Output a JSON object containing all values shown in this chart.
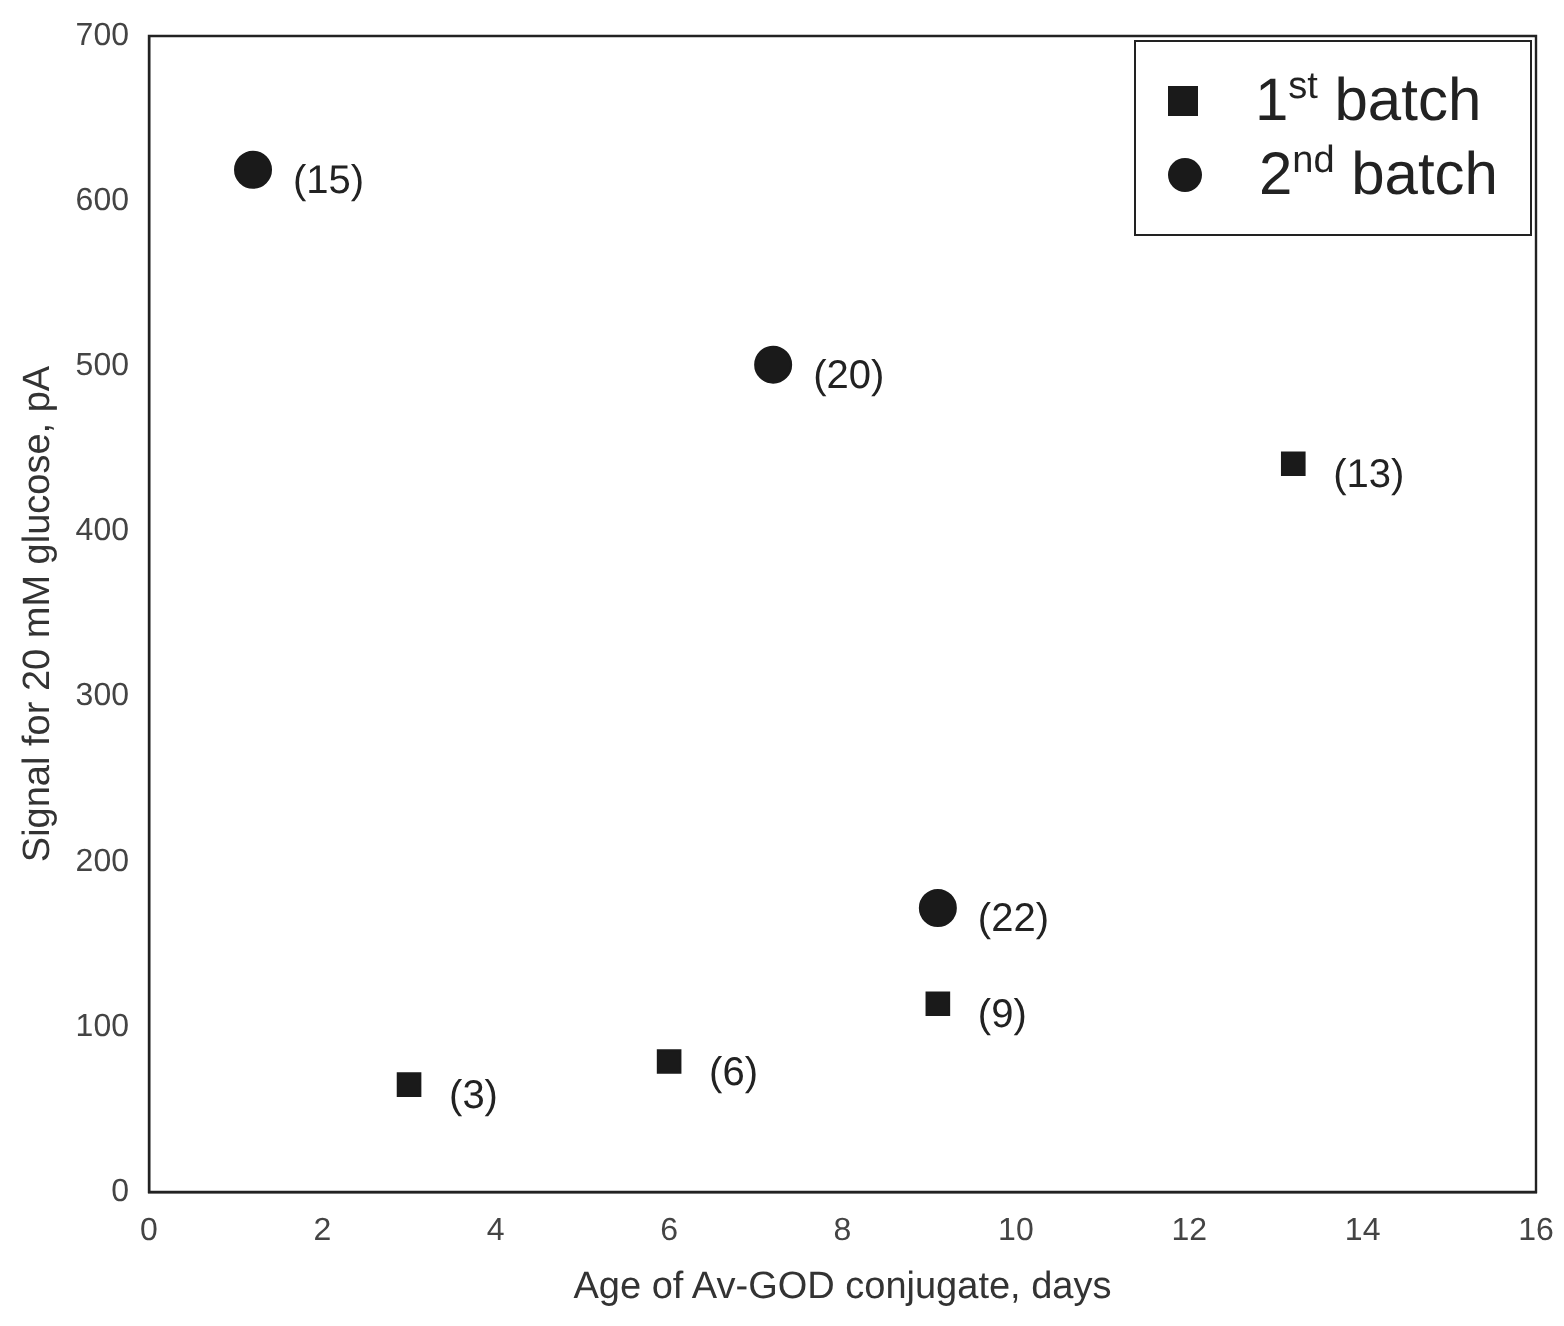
{
  "chart_data": {
    "type": "scatter",
    "xlabel": "Age of Av-GOD conjugate, days",
    "ylabel": "Signal for 20 mM glucose, pA",
    "series": [
      {
        "name": "1$^{st}$ batch",
        "color": "#1a1a1a",
        "marker": "square",
        "x": [
          3,
          6,
          9.1,
          13.2
        ],
        "values": [
          65,
          79,
          114,
          441
        ]
      },
      {
        "name": "2$^{nd}$ batch",
        "color": "#1a1a1a",
        "marker": "circle",
        "x": [
          1.2,
          7.2,
          9.1
        ],
        "values": [
          619,
          501,
          172
        ]
      }
    ],
    "annotations": [
      {
        "text": "(3)",
        "x": 3,
        "y": 65
      },
      {
        "text": "(6)",
        "x": 6,
        "y": 79
      },
      {
        "text": "(9)",
        "x": 9.1,
        "y": 114
      },
      {
        "text": "(13)",
        "x": 13.2,
        "y": 441
      },
      {
        "text": "(15)",
        "x": 1.2,
        "y": 619
      },
      {
        "text": "(20)",
        "x": 7.2,
        "y": 501
      },
      {
        "text": "(22)",
        "x": 9.1,
        "y": 172
      }
    ],
    "xlim": [
      0,
      16
    ],
    "xticks": [
      0,
      2,
      4,
      6,
      8,
      10,
      12,
      14,
      16
    ],
    "ylim": [
      0,
      700
    ],
    "yticks": [
      0,
      100,
      200,
      300,
      400,
      500,
      600,
      700
    ],
    "grid": false,
    "legend": "top right"
  }
}
